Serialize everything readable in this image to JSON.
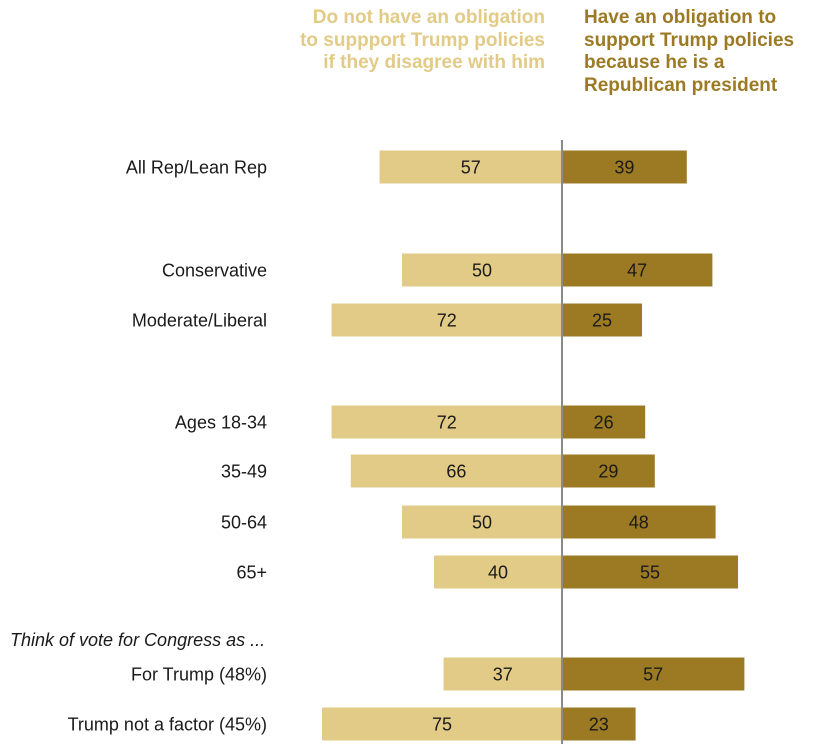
{
  "chart_data": {
    "type": "bar",
    "orientation": "diverging-horizontal",
    "series": [
      {
        "name": "Do not have an obligation to suppport Trump policies if they disagree with him",
        "color": "#e2cb86",
        "values": [
          57,
          50,
          72,
          72,
          66,
          50,
          40,
          37,
          75
        ]
      },
      {
        "name": "Have an obligation to support Trump policies because he is a Republican president",
        "color": "#9c7a24",
        "values": [
          39,
          47,
          25,
          26,
          29,
          48,
          55,
          57,
          23
        ]
      }
    ],
    "categories": [
      "All Rep/Lean Rep",
      "Conservative",
      "Moderate/Liberal",
      "Ages 18-34",
      "35-49",
      "50-64",
      "65+",
      "For Trump (48%)",
      "Trump not a factor (45%)"
    ],
    "section_label": "Think of vote for Congress as ...",
    "grid": false
  }
}
